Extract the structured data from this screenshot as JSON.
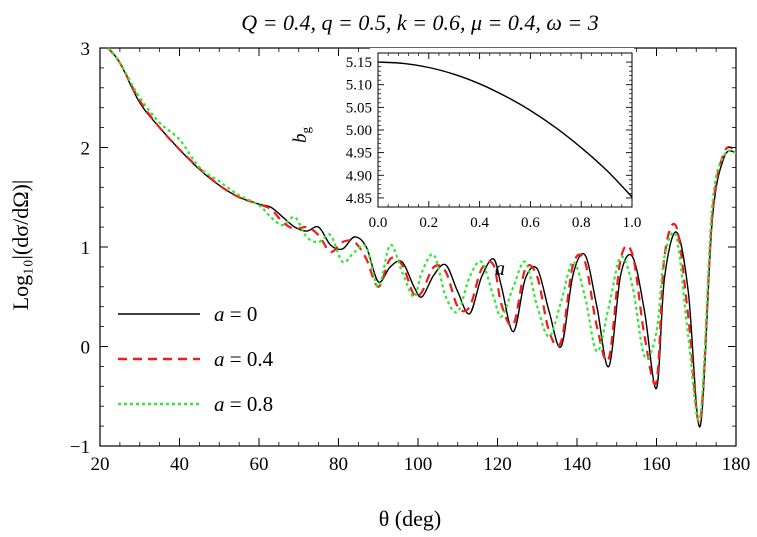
{
  "chart_data": [
    {
      "type": "line",
      "title": "Q = 0.4, q = 0.5, k = 0.6, μ = 0.4, ω = 3",
      "xlabel": "θ (deg)",
      "ylabel": "Log₁₀|(dσ/dΩ)|",
      "xlim": [
        20,
        180
      ],
      "ylim": [
        -1,
        3
      ],
      "xticks": [
        20,
        40,
        60,
        80,
        100,
        120,
        140,
        160,
        180
      ],
      "yticks": [
        -1,
        0,
        1,
        2,
        3
      ],
      "grid": false,
      "legend_position": "bottom-left",
      "annotation": "a",
      "series": [
        {
          "name": "a = 0",
          "color": "#000000",
          "style": "solid",
          "x": [
            22,
            25,
            30,
            35,
            40,
            45,
            50,
            55,
            60,
            63,
            66,
            69,
            72,
            75,
            78,
            81,
            84,
            87,
            90,
            93,
            96,
            99,
            101,
            104,
            107,
            110,
            113,
            116,
            119,
            121,
            124,
            127,
            130,
            133,
            136,
            139,
            142,
            145,
            148,
            151,
            154,
            157,
            160,
            162,
            165,
            168,
            171,
            174,
            177,
            180
          ],
          "y": [
            3.0,
            2.85,
            2.45,
            2.2,
            1.98,
            1.78,
            1.62,
            1.5,
            1.43,
            1.4,
            1.3,
            1.2,
            1.16,
            1.2,
            1.02,
            0.98,
            1.1,
            1.0,
            0.65,
            0.8,
            0.85,
            0.6,
            0.5,
            0.72,
            0.82,
            0.55,
            0.33,
            0.7,
            0.88,
            0.6,
            0.15,
            0.68,
            0.78,
            0.35,
            0.0,
            0.72,
            0.92,
            0.4,
            -0.2,
            0.72,
            0.9,
            0.35,
            -0.42,
            0.68,
            1.15,
            0.55,
            -0.8,
            1.25,
            1.9,
            1.95
          ]
        },
        {
          "name": "a = 0.4",
          "color": "#ee1c1c",
          "style": "dashed",
          "x": [
            22,
            25,
            30,
            35,
            40,
            45,
            50,
            55,
            60,
            63,
            66,
            69,
            72,
            75,
            78,
            81,
            84,
            87,
            90,
            93,
            96,
            99,
            101,
            104,
            107,
            110,
            113,
            116,
            119,
            121,
            124,
            127,
            130,
            133,
            136,
            139,
            142,
            145,
            148,
            151,
            154,
            157,
            160,
            162,
            165,
            168,
            171,
            174,
            177,
            180
          ],
          "y": [
            3.0,
            2.85,
            2.47,
            2.2,
            1.98,
            1.79,
            1.62,
            1.5,
            1.43,
            1.38,
            1.25,
            1.18,
            1.2,
            1.12,
            0.95,
            1.05,
            1.05,
            0.88,
            0.6,
            0.88,
            0.82,
            0.52,
            0.55,
            0.8,
            0.75,
            0.4,
            0.4,
            0.78,
            0.82,
            0.42,
            0.22,
            0.78,
            0.7,
            0.15,
            0.05,
            0.82,
            0.85,
            0.2,
            -0.12,
            0.88,
            0.92,
            0.1,
            -0.35,
            0.9,
            1.2,
            0.3,
            -0.75,
            1.3,
            1.95,
            1.97
          ]
        },
        {
          "name": "a = 0.8",
          "color": "#33e633",
          "style": "dotted",
          "x": [
            22,
            25,
            30,
            35,
            40,
            45,
            50,
            55,
            60,
            63,
            66,
            69,
            72,
            75,
            78,
            81,
            84,
            87,
            90,
            93,
            96,
            99,
            101,
            104,
            107,
            110,
            113,
            116,
            119,
            121,
            124,
            127,
            130,
            133,
            136,
            139,
            142,
            145,
            148,
            151,
            154,
            157,
            160,
            162,
            165,
            168,
            171,
            174,
            177,
            180
          ],
          "y": [
            3.0,
            2.85,
            2.5,
            2.25,
            2.08,
            1.8,
            1.66,
            1.52,
            1.42,
            1.3,
            1.22,
            1.3,
            1.1,
            1.05,
            1.12,
            0.85,
            0.95,
            1.0,
            0.6,
            1.02,
            0.75,
            0.5,
            0.75,
            0.92,
            0.5,
            0.35,
            0.7,
            0.85,
            0.5,
            0.3,
            0.6,
            0.85,
            0.4,
            0.1,
            0.45,
            0.85,
            0.5,
            -0.05,
            0.4,
            0.9,
            0.6,
            -0.1,
            0.15,
            0.9,
            1.1,
            0.1,
            -0.7,
            1.4,
            1.92,
            1.95
          ]
        }
      ]
    },
    {
      "type": "line",
      "xlabel": "",
      "ylabel": "b_g",
      "xlim": [
        0,
        1
      ],
      "ylim": [
        4.83,
        5.17
      ],
      "xticks": [
        0.0,
        0.2,
        0.4,
        0.6,
        0.8,
        1.0
      ],
      "yticks": [
        4.85,
        4.9,
        4.95,
        5.0,
        5.05,
        5.1,
        5.15
      ],
      "grid": false,
      "series": [
        {
          "color": "#000000",
          "x": [
            0.0,
            0.1,
            0.2,
            0.3,
            0.4,
            0.5,
            0.6,
            0.7,
            0.8,
            0.9,
            1.0
          ],
          "y": [
            5.15,
            5.147,
            5.138,
            5.123,
            5.102,
            5.075,
            5.043,
            5.005,
            4.961,
            4.911,
            4.852
          ]
        }
      ]
    }
  ]
}
